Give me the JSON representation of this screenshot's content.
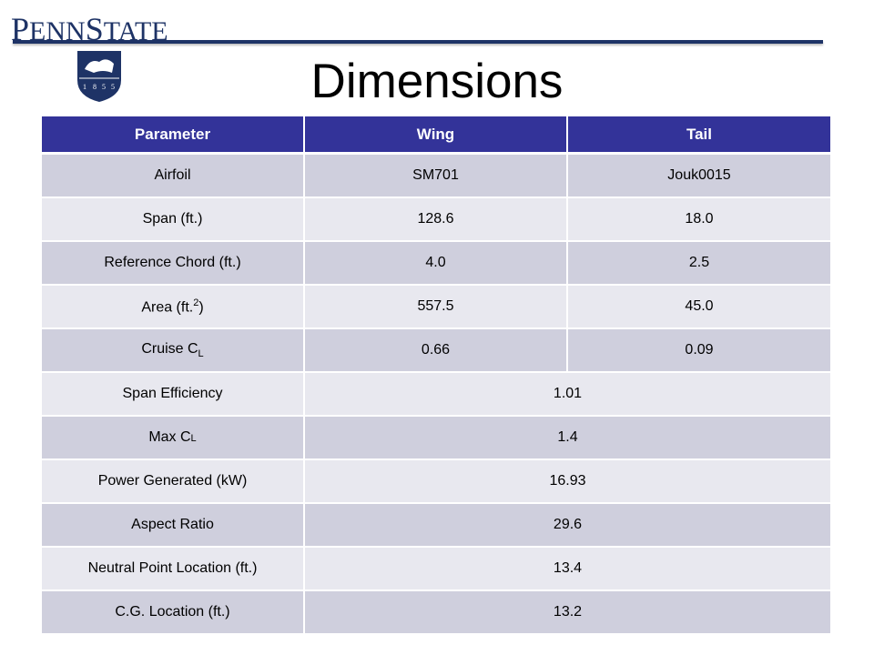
{
  "logo": {
    "p": "P",
    "enn": "ENN",
    "s": "S",
    "tate": "TATE",
    "year": [
      "1",
      "8",
      "5",
      "5"
    ]
  },
  "title": "Dimensions",
  "table": {
    "headers": [
      "Parameter",
      "Wing",
      "Tail"
    ],
    "rows": [
      {
        "label": "Airfoil",
        "wing": "SM701",
        "tail": "Jouk0015"
      },
      {
        "label": "Span (ft.)",
        "wing": "128.6",
        "tail": "18.0"
      },
      {
        "label": "Reference Chord (ft.)",
        "wing": "4.0",
        "tail": "2.5"
      },
      {
        "label_pre": "Area (ft.",
        "label_sup": "2",
        "label_post": ")",
        "wing": "557.5",
        "tail": "45.0"
      },
      {
        "label_pre": "Cruise C",
        "label_sub": "L",
        "wing": "0.66",
        "tail": "0.09"
      },
      {
        "label": "Span Efficiency",
        "value": "1.01"
      },
      {
        "label_pre": "Max C",
        "label_sub": "L",
        "value": "1.4"
      },
      {
        "label": "Power Generated (kW)",
        "value": "16.93"
      },
      {
        "label": "Aspect Ratio",
        "value": "29.6"
      },
      {
        "label": "Neutral Point Location (ft.)",
        "value": "13.4"
      },
      {
        "label": "C.G. Location (ft.)",
        "value": "13.2"
      }
    ]
  },
  "colors": {
    "header_bg": "#333399",
    "row_odd": "#cfcfdd",
    "row_even": "#e8e8ef",
    "brand_navy": "#1e3366"
  }
}
